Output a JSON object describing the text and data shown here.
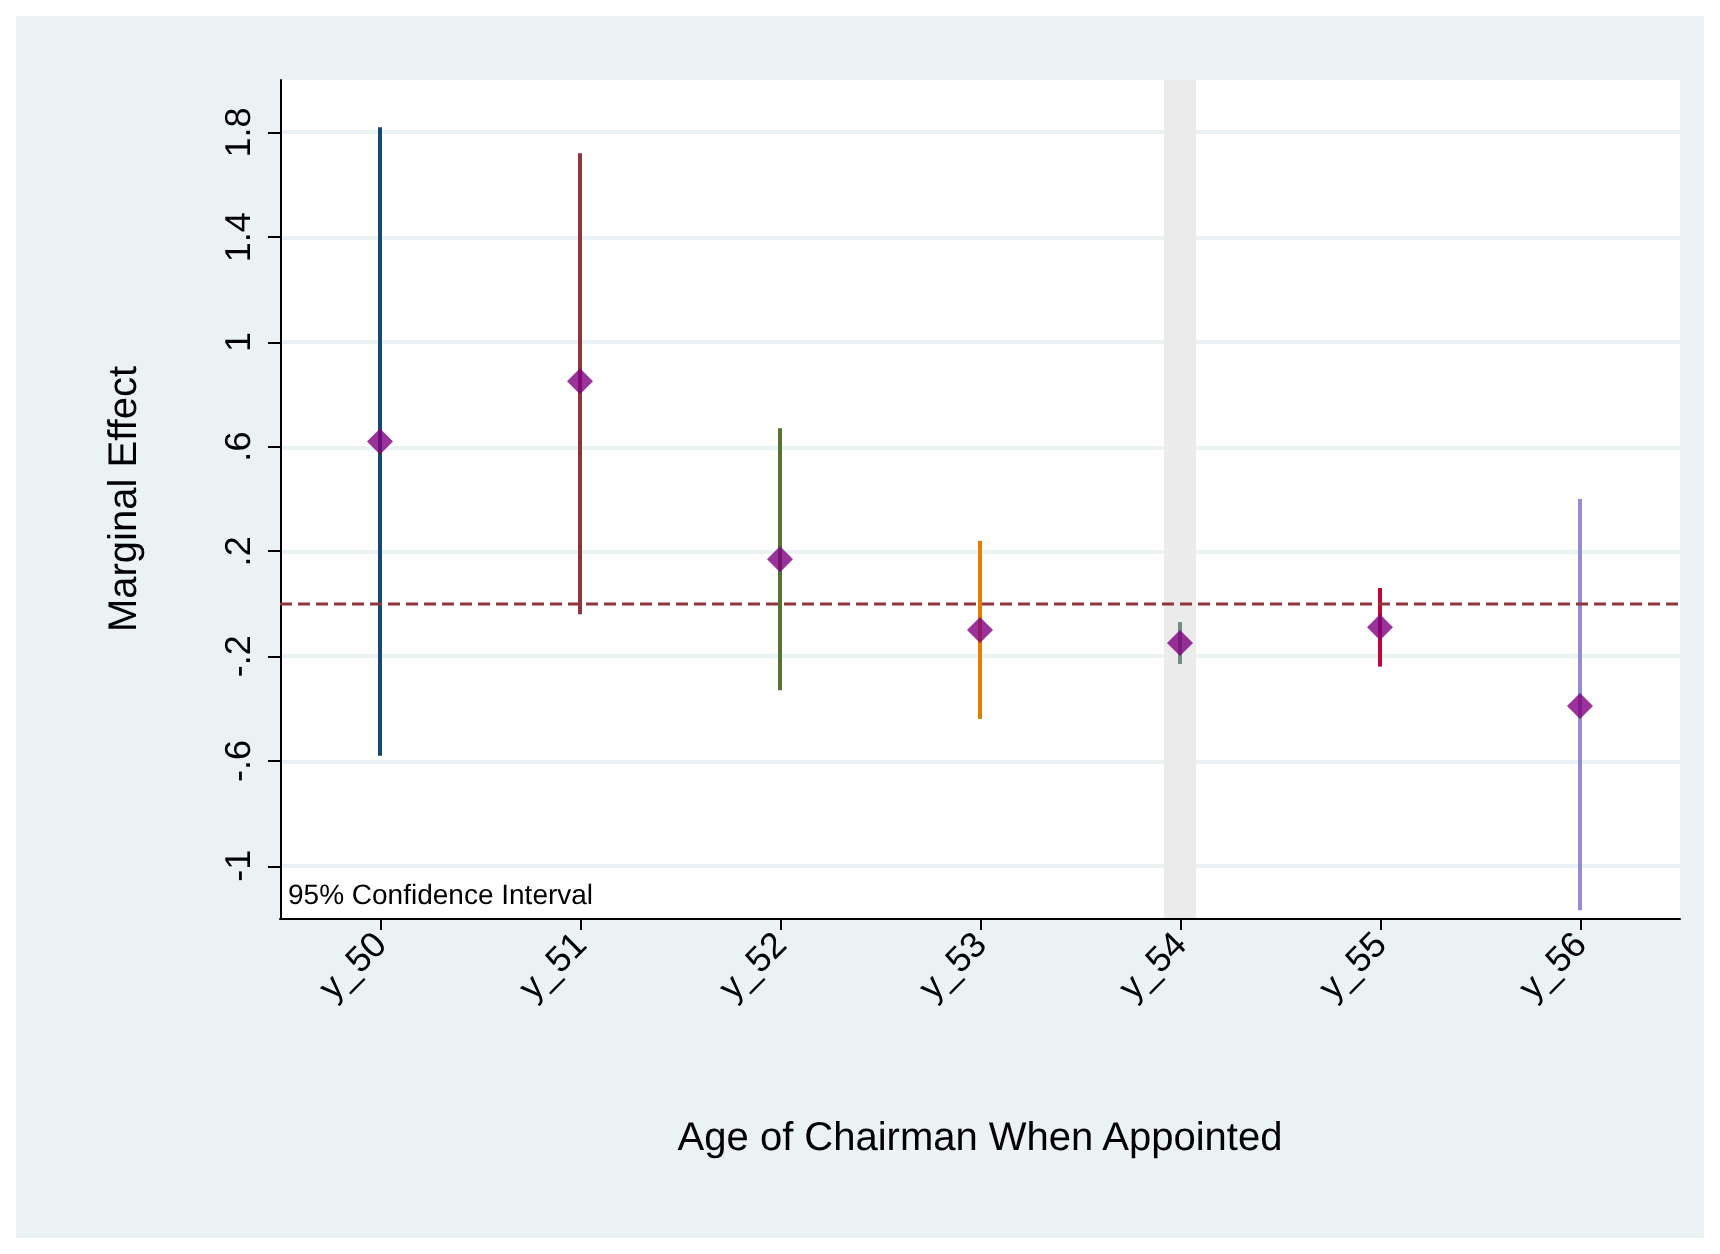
{
  "chart_data": {
    "type": "scatter",
    "xlabel": "Age of Chairman When Appointed",
    "ylabel": "Marginal Effect",
    "categories": [
      "y_50",
      "y_51",
      "y_52",
      "y_53",
      "y_54",
      "y_55",
      "y_56"
    ],
    "series": [
      {
        "type": "bar",
        "colors": [
          "#1a476f",
          "#90353b",
          "#55752f",
          "#e37e00",
          "#6e8e84",
          "#c10534",
          "#938dd2"
        ],
        "base": [
          -0.58,
          -0.04,
          -0.33,
          -0.44,
          -0.23,
          -0.24,
          -1.17
        ],
        "values": [
          2.4,
          1.76,
          1.0,
          0.68,
          0.16,
          0.3,
          1.57
        ]
      },
      {
        "color": "#800080",
        "values": [
          0.62,
          0.85,
          0.17,
          -0.1,
          -0.15,
          -0.09,
          -0.39
        ]
      }
    ],
    "ylim": [
      -1.2,
      2.0
    ],
    "yticks": [
      -1,
      {
        "value": -0.6,
        "label": "-.6"
      },
      {
        "value": -0.2,
        "label": "-.2"
      },
      {
        "value": 0.2,
        "label": ".2"
      },
      {
        "value": 0.6,
        "label": ".6"
      },
      1,
      1.4,
      1.8
    ],
    "ref_lines": [
      {
        "axis": "y",
        "value": 0,
        "color": "#90353b",
        "line_style": "dashed"
      }
    ],
    "bands": [
      {
        "axis": "x",
        "from": "y_54",
        "to": "y_54",
        "color": "#ebebeb"
      }
    ],
    "annotations": [
      "95% Confidence Interval"
    ],
    "grid": "y",
    "marker": "diamond"
  }
}
